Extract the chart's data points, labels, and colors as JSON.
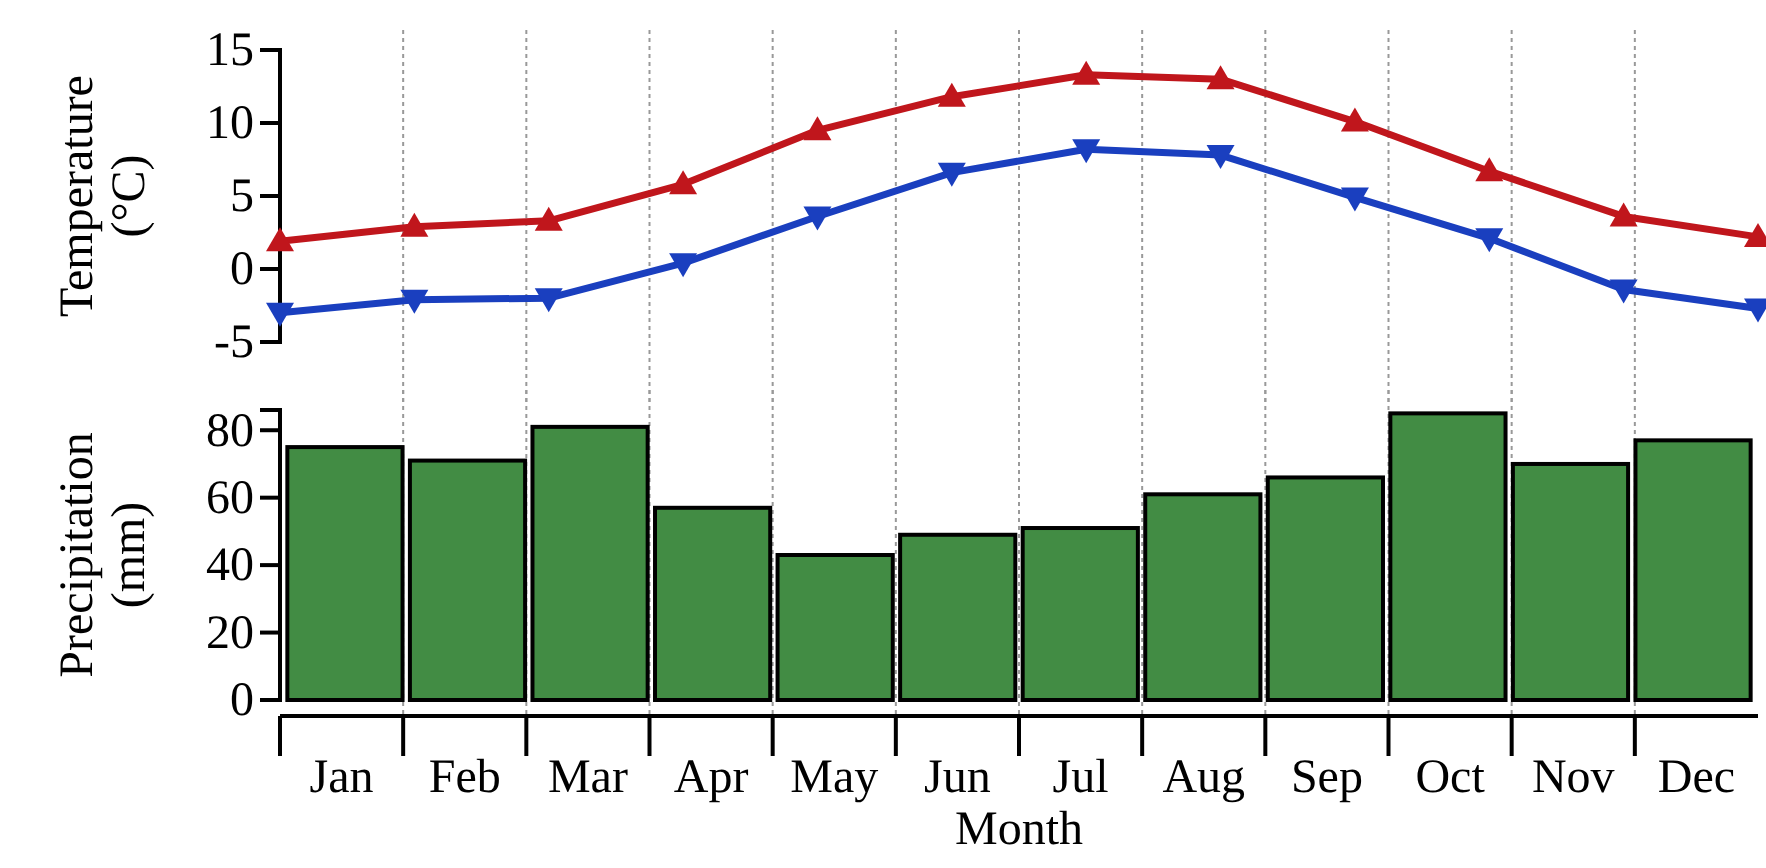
{
  "chart_data": [
    {
      "type": "line",
      "ylabel": "Temperature\n(°C)",
      "categories": [
        null,
        null,
        null,
        null,
        null,
        null,
        null,
        null,
        null,
        null,
        null,
        null
      ],
      "tick_labels": "y",
      "ylim": [
        -5,
        15
      ],
      "yticks": [
        -5,
        0,
        5,
        10,
        15
      ],
      "grid": "x",
      "line_style": "solid",
      "series": [
        {
          "color": "#c0161c",
          "marker": "triangle",
          "values": [
            1.9,
            2.9,
            3.3,
            5.8,
            9.5,
            11.8,
            13.3,
            13.0,
            10.1,
            6.7,
            3.6,
            2.2
          ]
        },
        {
          "color": "#1a3fbf",
          "marker": "triangle-down",
          "values": [
            -3.0,
            -2.1,
            -2.0,
            0.4,
            3.6,
            6.6,
            8.2,
            7.8,
            4.9,
            2.1,
            -1.4,
            -2.7
          ]
        }
      ]
    },
    {
      "type": "bar",
      "ylabel": "Precipitation\n(mm)",
      "xlabel": "Month",
      "categories": [
        "Jan",
        "Feb",
        "Mar",
        "Apr",
        "May",
        "Jun",
        "Jul",
        "Aug",
        "Sep",
        "Oct",
        "Nov",
        "Dec"
      ],
      "ylim": [
        0,
        86
      ],
      "yticks": [
        0,
        20,
        40,
        60,
        80
      ],
      "grid": "x",
      "color": "#428c44",
      "values": [
        75,
        71,
        81,
        57,
        43,
        49,
        51,
        61,
        66,
        85,
        70,
        77
      ]
    }
  ]
}
